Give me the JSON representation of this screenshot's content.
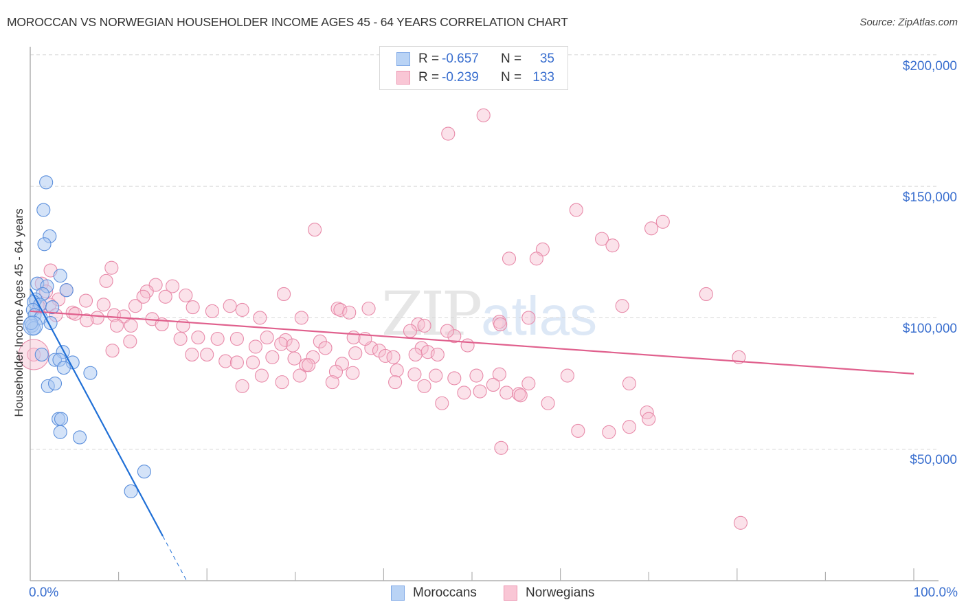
{
  "header": {
    "title": "MOROCCAN VS NORWEGIAN HOUSEHOLDER INCOME AGES 45 - 64 YEARS CORRELATION CHART",
    "source": "Source: ZipAtlas.com"
  },
  "watermark": {
    "zip": "ZIP",
    "atlas": "atlas"
  },
  "legend_top": {
    "rows": [
      {
        "r_label": "R =",
        "r_value": "-0.657",
        "n_label": "N =",
        "n_value": "35",
        "swatch_fill": "#b9d3f5",
        "swatch_border": "#7ea8e6"
      },
      {
        "r_label": "R =",
        "r_value": "-0.239",
        "n_label": "N =",
        "n_value": "133",
        "swatch_fill": "#f9c6d5",
        "swatch_border": "#ec94b0"
      }
    ]
  },
  "legend_bottom": {
    "items": [
      {
        "label": "Moroccans",
        "swatch_fill": "#b9d3f5",
        "swatch_border": "#7ea8e6"
      },
      {
        "label": "Norwegians",
        "swatch_fill": "#f9c6d5",
        "swatch_border": "#ec94b0"
      }
    ]
  },
  "axes": {
    "y_label": "Householder Income Ages 45 - 64 years",
    "y_ticks": [
      "$200,000",
      "$150,000",
      "$100,000",
      "$50,000"
    ],
    "x_ticks": [
      "0.0%",
      "100.0%"
    ]
  },
  "colors": {
    "blue_fill": "#a9c8f2",
    "blue_stroke": "#5b8fdc",
    "blue_line": "#1f6fd6",
    "pink_fill": "#f7bfd0",
    "pink_stroke": "#e88aa9",
    "pink_line": "#e0608d",
    "grid": "#d6d6d6",
    "axis": "#b0b0b0",
    "tick_text": "#3a6fcf"
  },
  "chart_data": {
    "type": "scatter",
    "title": "MOROCCAN VS NORWEGIAN HOUSEHOLDER INCOME AGES 45 - 64 YEARS CORRELATION CHART",
    "xlabel": "",
    "ylabel": "Householder Income Ages 45 - 64 years",
    "xlim": [
      0,
      100
    ],
    "ylim": [
      0,
      208000
    ],
    "x_unit": "%",
    "y_ticks": [
      50000,
      100000,
      150000,
      200000
    ],
    "x_tick_labels": [
      "0.0%",
      "100.0%"
    ],
    "grid": true,
    "legend_position": "top-center and bottom-center",
    "series": [
      {
        "name": "Moroccans",
        "color": "#a9c8f2",
        "R": -0.657,
        "N": 35,
        "trend": {
          "x": [
            0,
            15.0
          ],
          "y": [
            111000,
            17000
          ],
          "dashed_extension_to": [
            17.7,
            0
          ]
        },
        "points": [
          [
            1.8,
            151500
          ],
          [
            1.5,
            141000
          ],
          [
            2.2,
            131000
          ],
          [
            1.6,
            128000
          ],
          [
            3.4,
            116000
          ],
          [
            0.8,
            113000
          ],
          [
            1.9,
            112000
          ],
          [
            4.1,
            110500
          ],
          [
            1.4,
            109000
          ],
          [
            0.6,
            107000
          ],
          [
            0.4,
            106000
          ],
          [
            1.1,
            105000
          ],
          [
            2.5,
            104000
          ],
          [
            0.3,
            103000
          ],
          [
            0.5,
            101000
          ],
          [
            1.2,
            100000
          ],
          [
            2.3,
            98000
          ],
          [
            0.2,
            97000
          ],
          [
            0.4,
            96000
          ],
          [
            1.3,
            86000
          ],
          [
            3.7,
            87000
          ],
          [
            2.8,
            84000
          ],
          [
            3.3,
            84000
          ],
          [
            4.8,
            83000
          ],
          [
            3.8,
            81000
          ],
          [
            6.8,
            79000
          ],
          [
            2.0,
            74000
          ],
          [
            2.8,
            75000
          ],
          [
            3.2,
            61500
          ],
          [
            3.5,
            61500
          ],
          [
            3.4,
            56500
          ],
          [
            5.6,
            54500
          ],
          [
            12.9,
            41500
          ],
          [
            11.4,
            34000
          ],
          [
            0.1,
            98000
          ]
        ]
      },
      {
        "name": "Norwegians",
        "color": "#f7bfd0",
        "R": -0.239,
        "N": 133,
        "trend": {
          "x": [
            0,
            100
          ],
          "y": [
            102500,
            78700
          ]
        },
        "points": [
          [
            51.3,
            177000
          ],
          [
            47.3,
            170000
          ],
          [
            61.8,
            141000
          ],
          [
            71.6,
            136500
          ],
          [
            70.3,
            134000
          ],
          [
            32.2,
            133500
          ],
          [
            64.7,
            130000
          ],
          [
            65.9,
            127500
          ],
          [
            58.0,
            126000
          ],
          [
            54.2,
            122500
          ],
          [
            57.3,
            122500
          ],
          [
            9.2,
            119000
          ],
          [
            2.3,
            118000
          ],
          [
            1.3,
            113000
          ],
          [
            8.6,
            114000
          ],
          [
            14.2,
            112500
          ],
          [
            16.1,
            112000
          ],
          [
            1.8,
            110000
          ],
          [
            4.1,
            110500
          ],
          [
            13.2,
            110000
          ],
          [
            15.3,
            108000
          ],
          [
            12.8,
            108000
          ],
          [
            28.7,
            109000
          ],
          [
            76.5,
            109000
          ],
          [
            3.2,
            107000
          ],
          [
            6.3,
            106500
          ],
          [
            17.6,
            108500
          ],
          [
            67.0,
            104500
          ],
          [
            2.2,
            105000
          ],
          [
            8.3,
            105000
          ],
          [
            11.9,
            104500
          ],
          [
            18.4,
            104000
          ],
          [
            22.6,
            104500
          ],
          [
            34.8,
            103500
          ],
          [
            35.1,
            103000
          ],
          [
            38.3,
            103500
          ],
          [
            20.6,
            102500
          ],
          [
            24.0,
            103000
          ],
          [
            36.1,
            102000
          ],
          [
            4.8,
            102000
          ],
          [
            5.1,
            101500
          ],
          [
            2.9,
            101000
          ],
          [
            7.6,
            100000
          ],
          [
            9.5,
            101000
          ],
          [
            10.6,
            100500
          ],
          [
            6.4,
            99000
          ],
          [
            13.8,
            99500
          ],
          [
            26.0,
            100000
          ],
          [
            30.7,
            100000
          ],
          [
            56.4,
            100000
          ],
          [
            43.9,
            97500
          ],
          [
            44.6,
            97000
          ],
          [
            53.1,
            98500
          ],
          [
            53.2,
            97500
          ],
          [
            9.8,
            97000
          ],
          [
            17.3,
            97000
          ],
          [
            48.0,
            93000
          ],
          [
            43.0,
            95000
          ],
          [
            47.2,
            95000
          ],
          [
            11.3,
            91000
          ],
          [
            17.0,
            92000
          ],
          [
            19.0,
            92500
          ],
          [
            21.2,
            92000
          ],
          [
            23.4,
            92000
          ],
          [
            26.8,
            92500
          ],
          [
            28.9,
            91500
          ],
          [
            32.8,
            91000
          ],
          [
            36.6,
            92500
          ],
          [
            49.5,
            89500
          ],
          [
            25.5,
            89000
          ],
          [
            28.4,
            90000
          ],
          [
            29.7,
            89500
          ],
          [
            33.4,
            88500
          ],
          [
            38.6,
            88500
          ],
          [
            44.3,
            88500
          ],
          [
            39.5,
            87500
          ],
          [
            40.2,
            85500
          ],
          [
            41.1,
            85000
          ],
          [
            45.0,
            87000
          ],
          [
            46.1,
            86000
          ],
          [
            43.6,
            86000
          ],
          [
            9.3,
            87500
          ],
          [
            18.3,
            86000
          ],
          [
            20.0,
            86000
          ],
          [
            27.4,
            85000
          ],
          [
            29.9,
            84500
          ],
          [
            32.0,
            85000
          ],
          [
            36.8,
            86500
          ],
          [
            80.2,
            85000
          ],
          [
            22.1,
            83500
          ],
          [
            23.4,
            83000
          ],
          [
            25.2,
            83000
          ],
          [
            31.2,
            82000
          ],
          [
            35.3,
            82500
          ],
          [
            41.5,
            80000
          ],
          [
            43.5,
            78500
          ],
          [
            34.6,
            79500
          ],
          [
            26.2,
            78000
          ],
          [
            30.5,
            78000
          ],
          [
            36.5,
            79000
          ],
          [
            45.9,
            78000
          ],
          [
            53.1,
            78500
          ],
          [
            60.8,
            78000
          ],
          [
            50.5,
            78000
          ],
          [
            48.0,
            77000
          ],
          [
            24.0,
            74000
          ],
          [
            28.5,
            75500
          ],
          [
            34.2,
            75500
          ],
          [
            41.3,
            75500
          ],
          [
            44.6,
            74000
          ],
          [
            52.4,
            74500
          ],
          [
            56.4,
            75000
          ],
          [
            67.8,
            75000
          ],
          [
            50.9,
            72000
          ],
          [
            53.9,
            71500
          ],
          [
            55.3,
            71000
          ],
          [
            55.5,
            70500
          ],
          [
            49.1,
            71500
          ],
          [
            46.6,
            67500
          ],
          [
            58.6,
            67500
          ],
          [
            69.8,
            64000
          ],
          [
            70.0,
            61500
          ],
          [
            62.0,
            57000
          ],
          [
            67.8,
            58500
          ],
          [
            65.5,
            56500
          ],
          [
            53.3,
            50500
          ],
          [
            80.4,
            22000
          ],
          [
            0.4,
            86000
          ],
          [
            1.0,
            104000
          ],
          [
            11.4,
            97000
          ],
          [
            14.9,
            97500
          ],
          [
            31.5,
            82000
          ],
          [
            37.9,
            92000
          ]
        ]
      }
    ]
  }
}
